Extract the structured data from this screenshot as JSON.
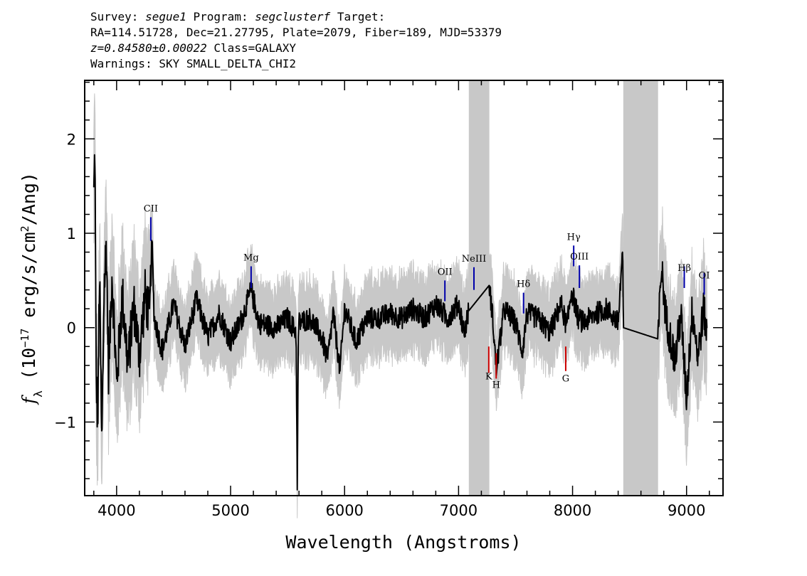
{
  "header": {
    "line1": {
      "survey_label": "Survey:",
      "survey": "segue1",
      "program_label": "Program:",
      "program": "segclusterf",
      "target_label": "Target:"
    },
    "line2": "RA=114.51728, Dec=21.27795, Plate=2079, Fiber=189, MJD=53379",
    "line3": {
      "redshift": "z=0.84580±0.00022",
      "class": "Class=GALAXY"
    },
    "line4": "Warnings: SKY SMALL_DELTA_CHI2"
  },
  "chart_data": {
    "type": "line",
    "xlabel": "Wavelength (Angstroms)",
    "ylabel": "f_λ (10^-17 erg/s/cm^2/Ang)",
    "xlim": [
      3720,
      9320
    ],
    "ylim": [
      -1.78,
      2.62
    ],
    "xticks": [
      4000,
      5000,
      6000,
      7000,
      8000,
      9000
    ],
    "yticks": [
      -1,
      0,
      1,
      2
    ],
    "grid": false,
    "masked_regions": [
      [
        7090,
        7270
      ],
      [
        8445,
        8750
      ]
    ],
    "series": [
      {
        "role": "error envelope",
        "color": "#c8c8c8"
      },
      {
        "role": "flux",
        "color": "#000000",
        "anchors": [
          [
            3800,
            1.4
          ],
          [
            3810,
            1.95
          ],
          [
            3820,
            -0.5
          ],
          [
            3835,
            -1.0
          ],
          [
            3850,
            0.6
          ],
          [
            3870,
            -1.3
          ],
          [
            3890,
            0.4
          ],
          [
            3910,
            0.9
          ],
          [
            3930,
            -0.5
          ],
          [
            3960,
            0.6
          ],
          [
            4000,
            -0.6
          ],
          [
            4050,
            0.35
          ],
          [
            4100,
            -0.4
          ],
          [
            4150,
            0.25
          ],
          [
            4200,
            -0.3
          ],
          [
            4250,
            0.35
          ],
          [
            4290,
            0.1
          ],
          [
            4310,
            0.93
          ],
          [
            4330,
            0.1
          ],
          [
            4400,
            -0.25
          ],
          [
            4500,
            0.25
          ],
          [
            4600,
            -0.2
          ],
          [
            4700,
            0.3
          ],
          [
            4800,
            -0.1
          ],
          [
            4900,
            0.15
          ],
          [
            5000,
            -0.15
          ],
          [
            5100,
            0.1
          ],
          [
            5180,
            0.4
          ],
          [
            5250,
            0.05
          ],
          [
            5400,
            0.0
          ],
          [
            5500,
            0.1
          ],
          [
            5575,
            -0.05
          ],
          [
            5585,
            -1.75
          ],
          [
            5595,
            0.05
          ],
          [
            5700,
            0.1
          ],
          [
            5800,
            -0.1
          ],
          [
            5850,
            -0.35
          ],
          [
            5900,
            0.15
          ],
          [
            5960,
            -0.45
          ],
          [
            6000,
            0.2
          ],
          [
            6100,
            -0.15
          ],
          [
            6200,
            0.1
          ],
          [
            6300,
            0.1
          ],
          [
            6400,
            0.15
          ],
          [
            6500,
            0.1
          ],
          [
            6600,
            0.2
          ],
          [
            6700,
            0.1
          ],
          [
            6800,
            0.25
          ],
          [
            6900,
            0.1
          ],
          [
            7000,
            0.25
          ],
          [
            7050,
            -0.05
          ],
          [
            7090,
            0.18
          ],
          [
            7270,
            0.45
          ],
          [
            7300,
            0.1
          ],
          [
            7330,
            -0.45
          ],
          [
            7400,
            0.2
          ],
          [
            7500,
            0.05
          ],
          [
            7560,
            -0.25
          ],
          [
            7600,
            0.15
          ],
          [
            7700,
            0.1
          ],
          [
            7800,
            -0.05
          ],
          [
            7900,
            0.25
          ],
          [
            7950,
            0.0
          ],
          [
            7990,
            0.4
          ],
          [
            8050,
            0.1
          ],
          [
            8100,
            0.05
          ],
          [
            8200,
            0.15
          ],
          [
            8300,
            0.2
          ],
          [
            8400,
            0.05
          ],
          [
            8440,
            0.85
          ],
          [
            8445,
            0.0
          ],
          [
            8750,
            -0.12
          ],
          [
            8780,
            0.65
          ],
          [
            8820,
            0.1
          ],
          [
            8900,
            -0.35
          ],
          [
            8950,
            0.15
          ],
          [
            9000,
            -0.75
          ],
          [
            9050,
            0.2
          ],
          [
            9100,
            -0.3
          ],
          [
            9150,
            0.2
          ],
          [
            9180,
            -0.1
          ]
        ]
      }
    ],
    "lines": [
      {
        "label": "CII",
        "wave": 4300,
        "color": "#0000aa",
        "side": "above",
        "y0": 0.92,
        "y1": 1.17,
        "labely": 1.23
      },
      {
        "label": "Mg",
        "wave": 5180,
        "color": "#0000aa",
        "side": "above",
        "y0": 0.42,
        "y1": 0.65,
        "labely": 0.71
      },
      {
        "label": "OII",
        "wave": 6880,
        "color": "#0000aa",
        "side": "above",
        "y0": 0.28,
        "y1": 0.5,
        "labely": 0.56
      },
      {
        "label": "NeIII",
        "wave": 7135,
        "color": "#0000aa",
        "side": "above",
        "y0": 0.4,
        "y1": 0.64,
        "labely": 0.7
      },
      {
        "label": "Hδ",
        "wave": 7570,
        "color": "#0000aa",
        "side": "above",
        "y0": 0.15,
        "y1": 0.37,
        "labely": 0.43
      },
      {
        "label": "Hγ",
        "wave": 8010,
        "color": "#0000aa",
        "side": "above",
        "y0": 0.65,
        "y1": 0.87,
        "labely": 0.93
      },
      {
        "label": "OIII",
        "wave": 8060,
        "color": "#0000aa",
        "side": "above",
        "y0": 0.42,
        "y1": 0.66,
        "labely": 0.72
      },
      {
        "label": "Hβ",
        "wave": 8980,
        "color": "#0000aa",
        "side": "above",
        "y0": 0.42,
        "y1": 0.65,
        "labely": 0.6
      },
      {
        "label": "OI",
        "wave": 9155,
        "color": "#0000aa",
        "side": "above",
        "y0": 0.35,
        "y1": 0.58,
        "labely": 0.52
      },
      {
        "label": "K",
        "wave": 7265,
        "color": "#cc0000",
        "side": "below",
        "y0": -0.2,
        "y1": -0.48,
        "labely": -0.55
      },
      {
        "label": "H",
        "wave": 7330,
        "color": "#cc0000",
        "side": "below",
        "y0": -0.27,
        "y1": -0.54,
        "labely": -0.64
      },
      {
        "label": "G",
        "wave": 7940,
        "color": "#cc0000",
        "side": "below",
        "y0": -0.2,
        "y1": -0.46,
        "labely": -0.57
      }
    ]
  }
}
